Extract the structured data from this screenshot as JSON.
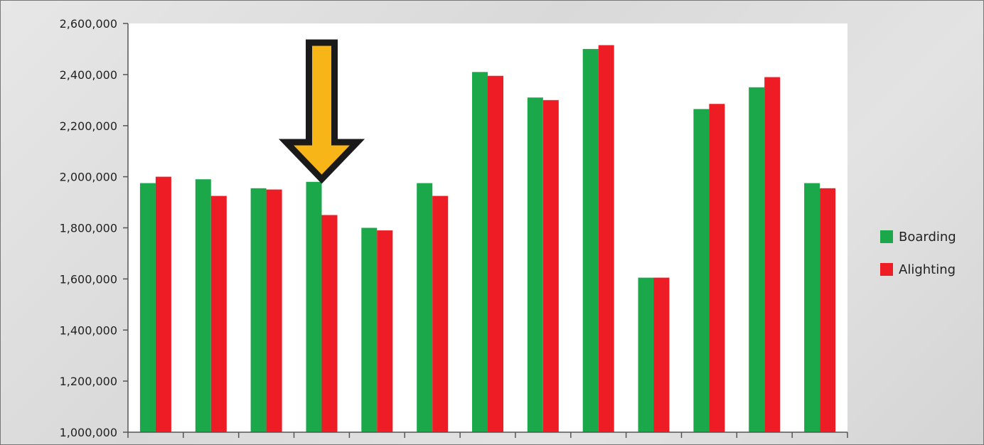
{
  "chart_data": {
    "type": "bar",
    "title": "",
    "xlabel": "",
    "ylabel": "",
    "categories": [
      "",
      "",
      "",
      "",
      "",
      "",
      "",
      "",
      "",
      "",
      "",
      "",
      ""
    ],
    "series": [
      {
        "name": "Boarding",
        "color": "#1aa84b",
        "values": [
          1975000,
          1990000,
          1955000,
          1980000,
          1800000,
          1975000,
          2410000,
          2310000,
          2500000,
          1605000,
          2265000,
          2350000,
          1975000
        ]
      },
      {
        "name": "Alighting",
        "color": "#ee1c24",
        "values": [
          2000000,
          1925000,
          1950000,
          1850000,
          1790000,
          1925000,
          2395000,
          2300000,
          2515000,
          1605000,
          2285000,
          2390000,
          1955000
        ]
      }
    ],
    "ylim": [
      1000000,
      2600000
    ],
    "yticks": [
      1000000,
      1200000,
      1400000,
      1600000,
      1800000,
      2000000,
      2200000,
      2400000,
      2600000
    ],
    "ytick_labels": [
      "1,000,000",
      "1,200,000",
      "1,400,000",
      "1,600,000",
      "1,800,000",
      "2,000,000",
      "2,200,000",
      "2,400,000",
      "2,600,000"
    ],
    "grid": false,
    "legend_position": "right",
    "annotations": [
      {
        "type": "arrow",
        "direction": "down",
        "category_index": 4,
        "fill": "#f7b517",
        "outline": "#1a1a1a"
      }
    ]
  }
}
